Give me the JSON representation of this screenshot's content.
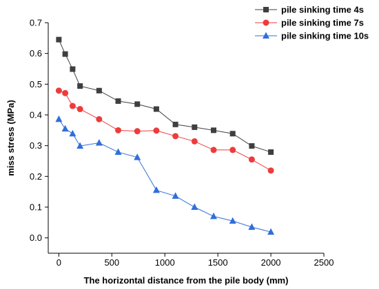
{
  "chart_data": {
    "type": "line",
    "title": "",
    "xlabel": "The horizontal distance from the pile body (mm)",
    "ylabel": "miss stress (MPa)",
    "xlim": [
      -100,
      2500
    ],
    "ylim": [
      -0.05,
      0.7
    ],
    "xticks": [
      0,
      500,
      1000,
      1500,
      2000,
      2500
    ],
    "yticks": [
      0.0,
      0.1,
      0.2,
      0.3,
      0.4,
      0.5,
      0.6,
      0.7
    ],
    "xtick_labels": [
      "0",
      "500",
      "1000",
      "1500",
      "2000",
      "2500"
    ],
    "ytick_labels": [
      "0.0",
      "0.1",
      "0.2",
      "0.3",
      "0.4",
      "0.5",
      "0.6",
      "0.7"
    ],
    "grid": false,
    "legend_position": "top-right",
    "series": [
      {
        "name": "pile sinking time 4s",
        "color": "#3f3f3f",
        "marker": "square",
        "x": [
          0,
          60,
          130,
          200,
          380,
          560,
          740,
          920,
          1100,
          1280,
          1460,
          1640,
          1820,
          2000
        ],
        "values": [
          0.645,
          0.598,
          0.549,
          0.494,
          0.479,
          0.445,
          0.435,
          0.419,
          0.369,
          0.36,
          0.35,
          0.339,
          0.299,
          0.279
        ]
      },
      {
        "name": "pile sinking time 7s",
        "color": "#ee3b3b",
        "marker": "circle",
        "x": [
          0,
          60,
          130,
          200,
          380,
          560,
          740,
          920,
          1100,
          1280,
          1460,
          1640,
          1820,
          2000
        ],
        "values": [
          0.479,
          0.471,
          0.429,
          0.419,
          0.386,
          0.35,
          0.347,
          0.349,
          0.331,
          0.314,
          0.286,
          0.286,
          0.255,
          0.219
        ]
      },
      {
        "name": "pile sinking time 10s",
        "color": "#2f6fdb",
        "marker": "triangle",
        "x": [
          0,
          60,
          130,
          200,
          380,
          560,
          740,
          920,
          1100,
          1280,
          1460,
          1640,
          1820,
          2000
        ],
        "values": [
          0.386,
          0.355,
          0.339,
          0.299,
          0.309,
          0.279,
          0.262,
          0.155,
          0.136,
          0.1,
          0.07,
          0.055,
          0.035,
          0.019
        ]
      }
    ]
  }
}
